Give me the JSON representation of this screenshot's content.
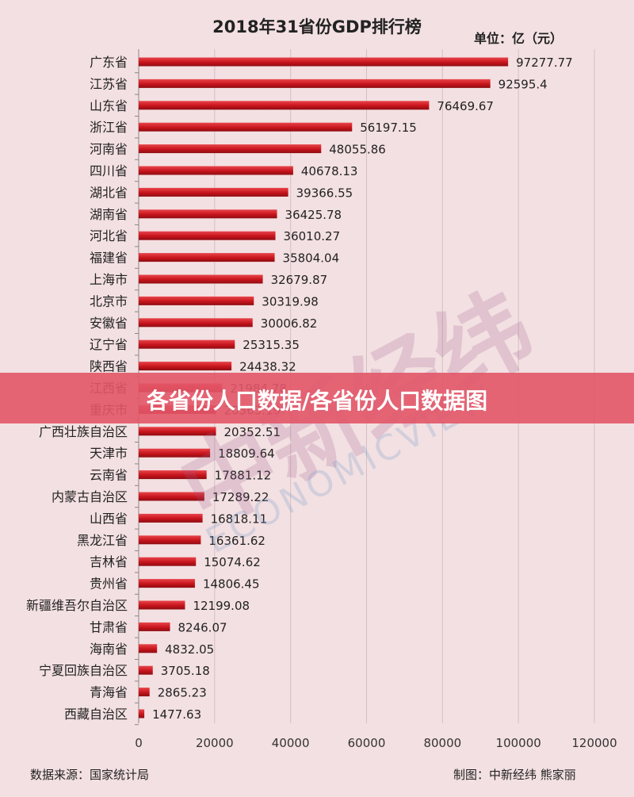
{
  "title": "2018年31省份GDP排行榜",
  "unit": "单位：亿（元）",
  "source": "数据来源：国家统计局",
  "credit": "制图：中新经纬 熊家丽",
  "watermark": "中新经纬",
  "watermark_sub": "ECONOMICVIEW",
  "overlay_title": "各省份人口数据/各省份人口数据图",
  "colors": {
    "bar": "#c8141c",
    "bar_dark": "#8e0d12",
    "background": "#f3e0e2",
    "overlay": "#e25668"
  },
  "chart_data": {
    "type": "bar",
    "orientation": "horizontal",
    "title": "2018年31省份GDP排行榜",
    "categories": [
      "广东省",
      "江苏省",
      "山东省",
      "浙江省",
      "河南省",
      "四川省",
      "湖北省",
      "湖南省",
      "河北省",
      "福建省",
      "上海市",
      "北京市",
      "安徽省",
      "辽宁省",
      "陕西省",
      "江西省",
      "重庆市",
      "广西壮族自治区",
      "天津市",
      "云南省",
      "内蒙古自治区",
      "山西省",
      "黑龙江省",
      "吉林省",
      "贵州省",
      "新疆维吾尔自治区",
      "甘肃省",
      "海南省",
      "宁夏回族自治区",
      "青海省",
      "西藏自治区"
    ],
    "values": [
      97277.77,
      92595.4,
      76469.67,
      56197.15,
      48055.86,
      40678.13,
      39366.55,
      36425.78,
      36010.27,
      35804.04,
      32679.87,
      30319.98,
      30006.82,
      25315.35,
      24438.32,
      21984.78,
      20363.19,
      20352.51,
      18809.64,
      17881.12,
      17289.22,
      16818.11,
      16361.62,
      15074.62,
      14806.45,
      12199.08,
      8246.07,
      4832.05,
      3705.18,
      2865.23,
      1477.63
    ],
    "labels": [
      "97277.77",
      "92595.4",
      "76469.67",
      "56197.15",
      "48055.86",
      "40678.13",
      "39366.55",
      "36425.78",
      "36010.27",
      "35804.04",
      "32679.87",
      "30319.98",
      "30006.82",
      "25315.35",
      "24438.32",
      "21984.78",
      "20363.19",
      "20352.51",
      "18809.64",
      "17881.12",
      "17289.22",
      "16818.11",
      "16361.62",
      "15074.62",
      "14806.45",
      "12199.08",
      "8246.07",
      "4832.05",
      "3705.18",
      "2865.23",
      "1477.63"
    ],
    "xlim": [
      0,
      120000
    ],
    "xticks": [
      "0",
      "20000",
      "40000",
      "60000",
      "80000",
      "100000",
      "120000"
    ],
    "grid": "vertical",
    "legend": "none"
  }
}
